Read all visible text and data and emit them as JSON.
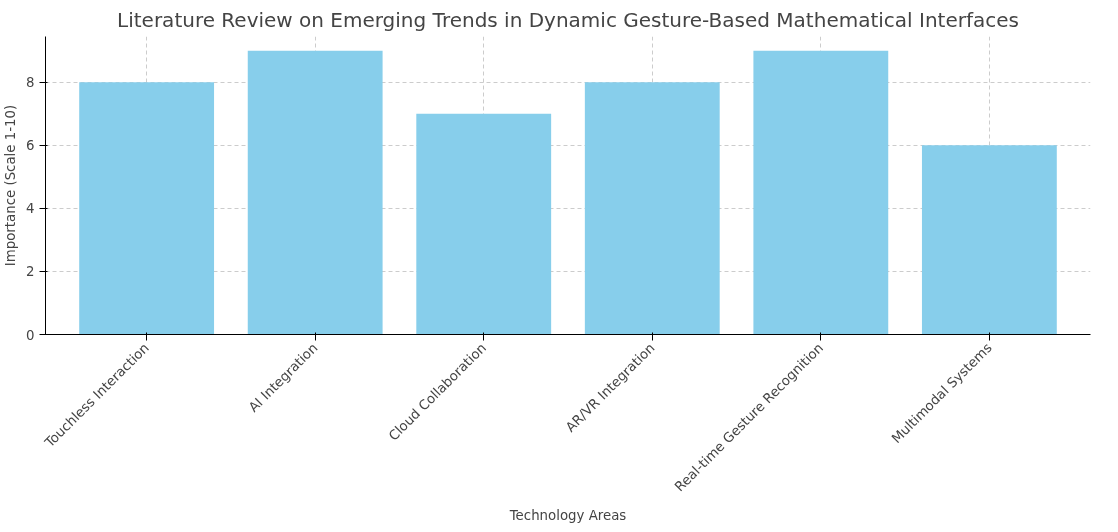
{
  "chart_data": {
    "type": "bar",
    "title": "Literature Review on Emerging Trends in Dynamic Gesture-Based Mathematical Interfaces",
    "xlabel": "Technology Areas",
    "ylabel": "Importance (Scale 1-10)",
    "categories": [
      "Touchless Interaction",
      "AI Integration",
      "Cloud Collaboration",
      "AR/VR Integration",
      "Real-time Gesture Recognition",
      "Multimodal Systems"
    ],
    "values": [
      8,
      9,
      7,
      8,
      9,
      6
    ],
    "color": "#87ceeb",
    "ylim": [
      0,
      9.45
    ],
    "yticks": [
      0,
      2,
      4,
      6,
      8
    ],
    "grid": true
  }
}
